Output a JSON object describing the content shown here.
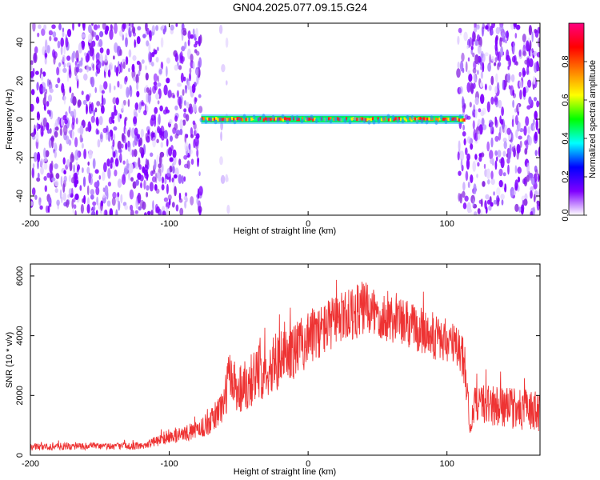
{
  "title": "GN04.2025.077.09.15.G24",
  "chart_data": [
    {
      "type": "heatmap",
      "xlabel": "Height of straight line (km)",
      "ylabel": "Frequency (Hz)",
      "xlim": [
        -200,
        167
      ],
      "ylim": [
        -50,
        50
      ],
      "xticks": [
        -200,
        -100,
        0,
        100
      ],
      "yticks": [
        -40,
        -20,
        0,
        20,
        40
      ],
      "colorbar": {
        "label": "Normalized spectral amplitude",
        "range": [
          0.0,
          1.0
        ],
        "ticks": [
          "0.0",
          "0.2",
          "0.4",
          "0.6",
          "0.8"
        ],
        "colormap": [
          "#ffffff",
          "#7f00ff",
          "#0000ff",
          "#00ffff",
          "#00ff00",
          "#ffff00",
          "#ff8000",
          "#ff0000",
          "#ff007f"
        ]
      },
      "features": {
        "noise_regions_km": [
          [
            -200,
            -77
          ],
          [
            -63,
            -57
          ],
          [
            108,
            167
          ]
        ],
        "gap_km": [
          -77,
          -63
        ],
        "signal_band": {
          "x_range": [
            -77,
            112
          ],
          "frequency": 0,
          "amplitude": 0.9
        }
      }
    },
    {
      "type": "line",
      "xlabel": "Height of straight line (km)",
      "ylabel": "SNR (10 * v/v)",
      "xlim": [
        -200,
        167
      ],
      "ylim": [
        0,
        6400
      ],
      "xticks": [
        -200,
        -100,
        0,
        100
      ],
      "yticks": [
        0,
        2000,
        4000,
        6000
      ],
      "series": [
        {
          "color": "#ee3333",
          "x": [
            -200,
            -180,
            -160,
            -140,
            -120,
            -100,
            -90,
            -80,
            -70,
            -60,
            -57,
            -50,
            -40,
            -30,
            -20,
            -10,
            0,
            10,
            20,
            30,
            40,
            50,
            60,
            70,
            80,
            90,
            100,
            110,
            113,
            117,
            120,
            130,
            140,
            150,
            160,
            167
          ],
          "y": [
            280,
            290,
            300,
            300,
            310,
            600,
            700,
            850,
            1100,
            1800,
            2700,
            2200,
            2600,
            2900,
            3200,
            3500,
            3900,
            4200,
            4500,
            4700,
            4900,
            4750,
            4600,
            4400,
            4200,
            4000,
            3800,
            3500,
            3000,
            700,
            1800,
            1700,
            1600,
            1550,
            1500,
            1450
          ],
          "spread": [
            120,
            120,
            120,
            120,
            120,
            220,
            260,
            300,
            420,
            700,
            900,
            900,
            950,
            950,
            950,
            950,
            950,
            900,
            900,
            900,
            950,
            900,
            850,
            850,
            800,
            800,
            750,
            800,
            800,
            400,
            650,
            700,
            700,
            700,
            700,
            700
          ]
        }
      ]
    }
  ]
}
